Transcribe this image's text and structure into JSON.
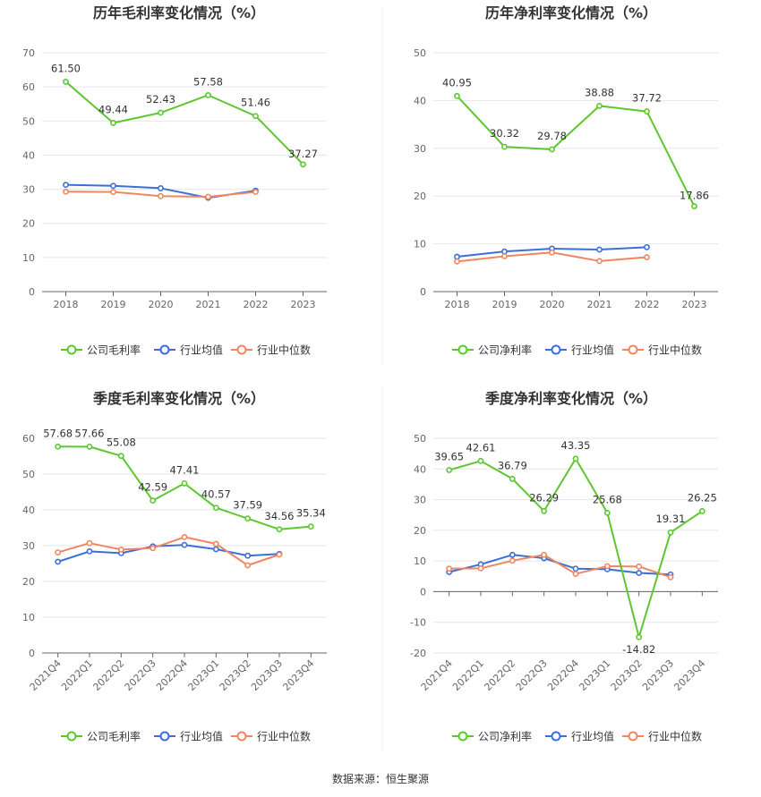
{
  "source_text": "数据来源：恒生聚源",
  "colors": {
    "company": "#5cc72e",
    "industry_avg": "#3a6fd8",
    "industry_median": "#f08660",
    "grid": "#e6e6e6",
    "axis": "#666666"
  },
  "chart_data": [
    {
      "type": "line",
      "title": "历年毛利率变化情况（%）",
      "categories": [
        "2018",
        "2019",
        "2020",
        "2021",
        "2022",
        "2023"
      ],
      "ylim": [
        0,
        70
      ],
      "yticks": [
        0,
        10,
        20,
        30,
        40,
        50,
        60,
        70
      ],
      "x_tick_rotate": false,
      "series": [
        {
          "name": "公司毛利率",
          "key": "company",
          "values": [
            61.5,
            49.44,
            52.43,
            57.58,
            51.46,
            37.27
          ],
          "labels": [
            "61.50",
            "49.44",
            "52.43",
            "57.58",
            "51.46",
            "37.27"
          ]
        },
        {
          "name": "行业均值",
          "key": "industry_avg",
          "values": [
            31.3,
            31.0,
            30.3,
            27.5,
            29.6,
            null
          ]
        },
        {
          "name": "行业中位数",
          "key": "industry_median",
          "values": [
            29.3,
            29.2,
            28.0,
            27.8,
            29.2,
            null
          ]
        }
      ]
    },
    {
      "type": "line",
      "title": "历年净利率变化情况（%）",
      "categories": [
        "2018",
        "2019",
        "2020",
        "2021",
        "2022",
        "2023"
      ],
      "ylim": [
        0,
        50
      ],
      "yticks": [
        0,
        10,
        20,
        30,
        40,
        50
      ],
      "x_tick_rotate": false,
      "series": [
        {
          "name": "公司净利率",
          "key": "company",
          "values": [
            40.95,
            30.32,
            29.78,
            38.88,
            37.72,
            17.86
          ],
          "labels": [
            "40.95",
            "30.32",
            "29.78",
            "38.88",
            "37.72",
            "17.86"
          ]
        },
        {
          "name": "行业均值",
          "key": "industry_avg",
          "values": [
            7.3,
            8.4,
            9.0,
            8.8,
            9.3,
            null
          ]
        },
        {
          "name": "行业中位数",
          "key": "industry_median",
          "values": [
            6.3,
            7.4,
            8.2,
            6.4,
            7.2,
            null
          ]
        }
      ]
    },
    {
      "type": "line",
      "title": "季度毛利率变化情况（%）",
      "categories": [
        "2021Q4",
        "2022Q1",
        "2022Q2",
        "2022Q3",
        "2022Q4",
        "2023Q1",
        "2023Q2",
        "2023Q3",
        "2023Q4"
      ],
      "ylim": [
        0,
        60
      ],
      "yticks": [
        0,
        10,
        20,
        30,
        40,
        50,
        60
      ],
      "x_tick_rotate": true,
      "series": [
        {
          "name": "公司毛利率",
          "key": "company",
          "values": [
            57.68,
            57.66,
            55.08,
            42.59,
            47.41,
            40.57,
            37.59,
            34.56,
            35.34
          ],
          "labels": [
            "57.68",
            "57.66",
            "55.08",
            "42.59",
            "47.41",
            "40.57",
            "37.59",
            "34.56",
            "35.34"
          ]
        },
        {
          "name": "行业均值",
          "key": "industry_avg",
          "values": [
            25.5,
            28.4,
            27.9,
            29.8,
            30.2,
            29.0,
            27.2,
            27.7,
            null
          ]
        },
        {
          "name": "行业中位数",
          "key": "industry_median",
          "values": [
            28.1,
            30.7,
            28.9,
            29.3,
            32.4,
            30.5,
            24.5,
            27.5,
            null
          ]
        }
      ]
    },
    {
      "type": "line",
      "title": "季度净利率变化情况（%）",
      "categories": [
        "2021Q4",
        "2022Q1",
        "2022Q2",
        "2022Q3",
        "2022Q4",
        "2023Q1",
        "2023Q2",
        "2023Q3",
        "2023Q4"
      ],
      "ylim": [
        -20,
        50
      ],
      "yticks": [
        -20,
        -10,
        0,
        10,
        20,
        30,
        40,
        50
      ],
      "x_tick_rotate": true,
      "series": [
        {
          "name": "公司净利率",
          "key": "company",
          "values": [
            39.65,
            42.61,
            36.79,
            26.29,
            43.35,
            25.68,
            -14.82,
            19.31,
            26.25
          ],
          "labels": [
            "39.65",
            "42.61",
            "36.79",
            "26.29",
            "43.35",
            "25.68",
            "-14.82",
            "19.31",
            "26.25"
          ]
        },
        {
          "name": "行业均值",
          "key": "industry_avg",
          "values": [
            6.4,
            8.9,
            12.0,
            10.9,
            7.5,
            7.3,
            6.1,
            5.6,
            null
          ]
        },
        {
          "name": "行业中位数",
          "key": "industry_median",
          "values": [
            7.5,
            7.6,
            10.1,
            12.0,
            5.8,
            8.3,
            8.2,
            4.7,
            null
          ]
        }
      ]
    }
  ]
}
